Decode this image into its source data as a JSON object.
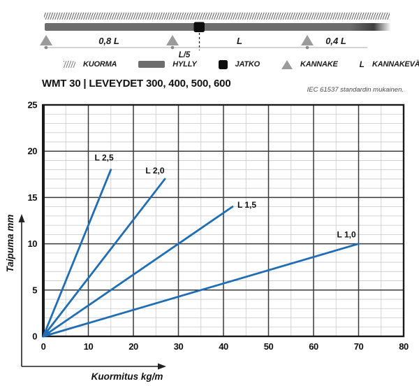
{
  "diagram": {
    "span_labels": {
      "left": "0,8 L",
      "middle": "L",
      "right": "0,4 L",
      "joint": "L/5"
    },
    "legend": [
      {
        "symbol": "hatch-icon",
        "label": "KUORMA"
      },
      {
        "symbol": "beam-icon",
        "label": "HYLLY"
      },
      {
        "symbol": "joint-icon",
        "label": "JATKO"
      },
      {
        "symbol": "bracket-icon",
        "label": "KANNAKE"
      },
      {
        "symbol": "letter-L",
        "symbol_text": "L",
        "label": "KANNAKEVÄLI"
      }
    ]
  },
  "header": {
    "title": "WMT 30 | LEVEYDET 300, 400, 500, 600",
    "note": "IEC 61537 standardin mukainen."
  },
  "chart_data": {
    "type": "line",
    "xlabel": "Kuormitus kg/m",
    "ylabel": "Taipuma mm",
    "xlim": [
      0,
      80
    ],
    "ylim": [
      0,
      25
    ],
    "x_ticks": [
      0,
      10,
      20,
      30,
      40,
      50,
      60,
      70,
      80
    ],
    "y_ticks": [
      0,
      5,
      10,
      15,
      20,
      25
    ],
    "x_major": 10,
    "x_minor": 5,
    "y_major": 5,
    "y_minor": 1,
    "grid": true,
    "legend_position": "inline-labels",
    "line_color": "#1f6eb5",
    "series": [
      {
        "name": "L 2,5",
        "x": [
          0,
          15
        ],
        "y": [
          0,
          18
        ],
        "label_pos": [
          13.5,
          19.3
        ]
      },
      {
        "name": "L 2,0",
        "x": [
          0,
          27
        ],
        "y": [
          0,
          17
        ],
        "label_pos": [
          24.8,
          17.9
        ]
      },
      {
        "name": "L 1,5",
        "x": [
          0,
          42
        ],
        "y": [
          0,
          14
        ],
        "label_pos": [
          45.2,
          14.2
        ]
      },
      {
        "name": "L 1,0",
        "x": [
          0,
          70
        ],
        "y": [
          0,
          10
        ],
        "label_pos": [
          67.3,
          11.0
        ]
      }
    ]
  }
}
